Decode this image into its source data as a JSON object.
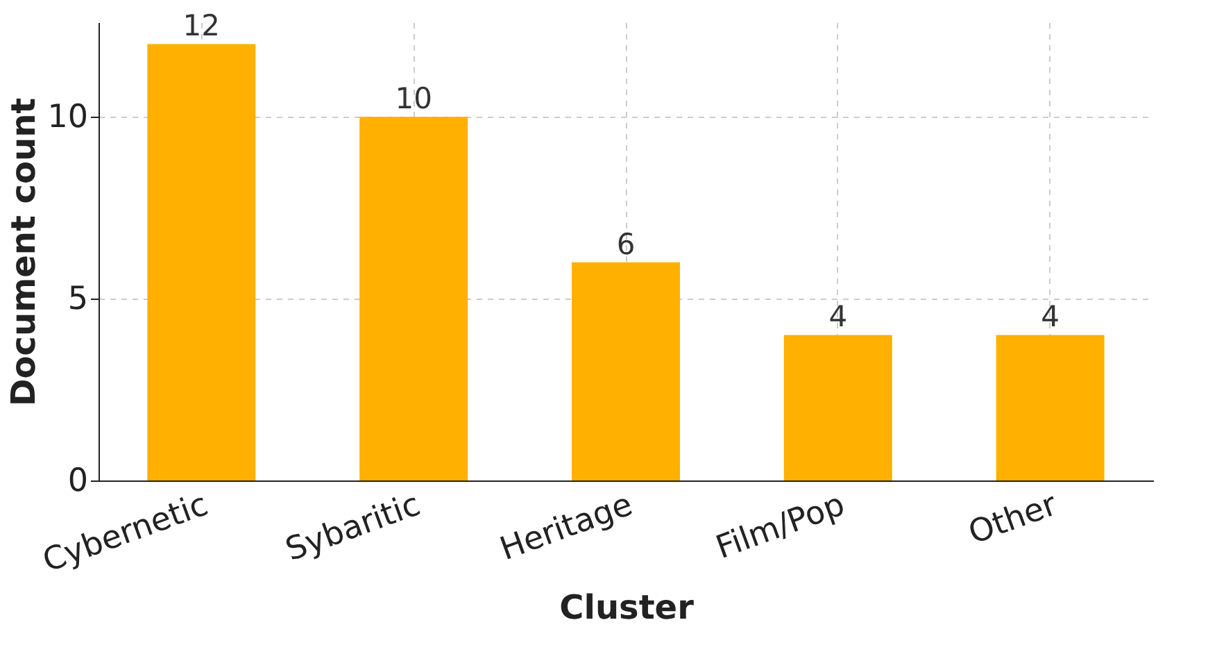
{
  "chart_data": {
    "type": "bar",
    "xlabel": "Cluster",
    "ylabel": "Document count",
    "categories": [
      "Cybernetic",
      "Sybaritic",
      "Heritage",
      "Film/Pop",
      "Other"
    ],
    "values": [
      12,
      10,
      6,
      4,
      4
    ],
    "color": "#ffb000",
    "ylim": [
      0,
      12.6
    ],
    "yticks": [
      0,
      5,
      10
    ],
    "grid": true,
    "data_labels": true
  }
}
